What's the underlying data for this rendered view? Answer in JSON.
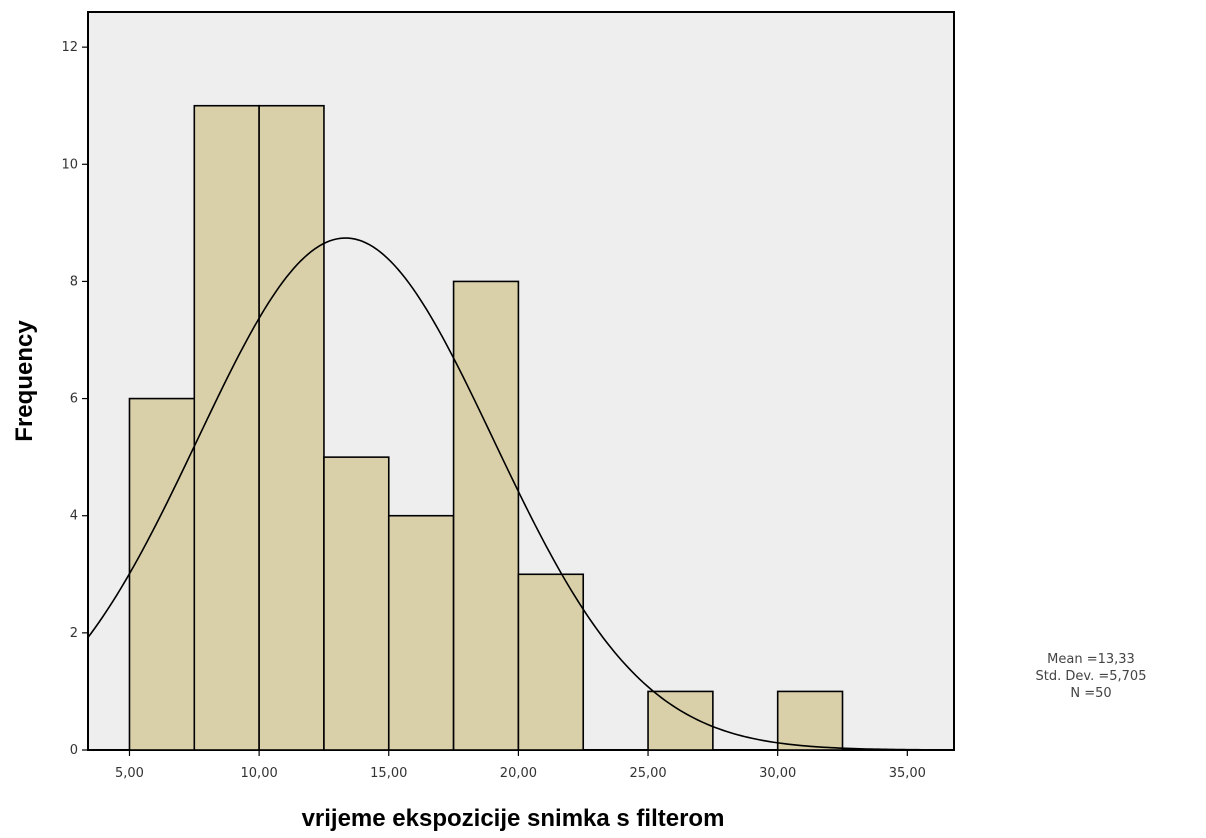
{
  "chart_data": {
    "type": "bar",
    "subtype": "histogram",
    "xlabel": "vrijeme ekspozicije snimka s filterom",
    "ylabel": "Frequency",
    "xlim": [
      3.4,
      36.8
    ],
    "ylim": [
      0,
      12.6
    ],
    "x_ticks": [
      5,
      10,
      15,
      20,
      25,
      30,
      35
    ],
    "x_tick_labels": [
      "5,00",
      "10,00",
      "15,00",
      "20,00",
      "25,00",
      "30,00",
      "35,00"
    ],
    "y_ticks": [
      0,
      2,
      4,
      6,
      8,
      10,
      12
    ],
    "y_tick_labels": [
      "0",
      "2",
      "4",
      "6",
      "8",
      "10",
      "12"
    ],
    "bins": [
      {
        "start": 5.0,
        "end": 7.5,
        "count": 6
      },
      {
        "start": 7.5,
        "end": 10.0,
        "count": 11
      },
      {
        "start": 10.0,
        "end": 12.5,
        "count": 11
      },
      {
        "start": 12.5,
        "end": 15.0,
        "count": 5
      },
      {
        "start": 15.0,
        "end": 17.5,
        "count": 4
      },
      {
        "start": 17.5,
        "end": 20.0,
        "count": 8
      },
      {
        "start": 20.0,
        "end": 22.5,
        "count": 3
      },
      {
        "start": 22.5,
        "end": 25.0,
        "count": 0
      },
      {
        "start": 25.0,
        "end": 27.5,
        "count": 1
      },
      {
        "start": 27.5,
        "end": 30.0,
        "count": 0
      },
      {
        "start": 30.0,
        "end": 32.5,
        "count": 1
      }
    ],
    "normal_curve": {
      "mean": 13.33,
      "std": 5.705,
      "n": 50,
      "bin_width": 2.5
    },
    "stats": [
      "Mean =13,33",
      "Std. Dev. =5,705",
      "N =50"
    ],
    "grid": false,
    "colors": {
      "bar_fill": "#d9d0a9",
      "bar_stroke": "#000000",
      "plot_bg": "#eeeeee",
      "curve": "#000000"
    }
  }
}
